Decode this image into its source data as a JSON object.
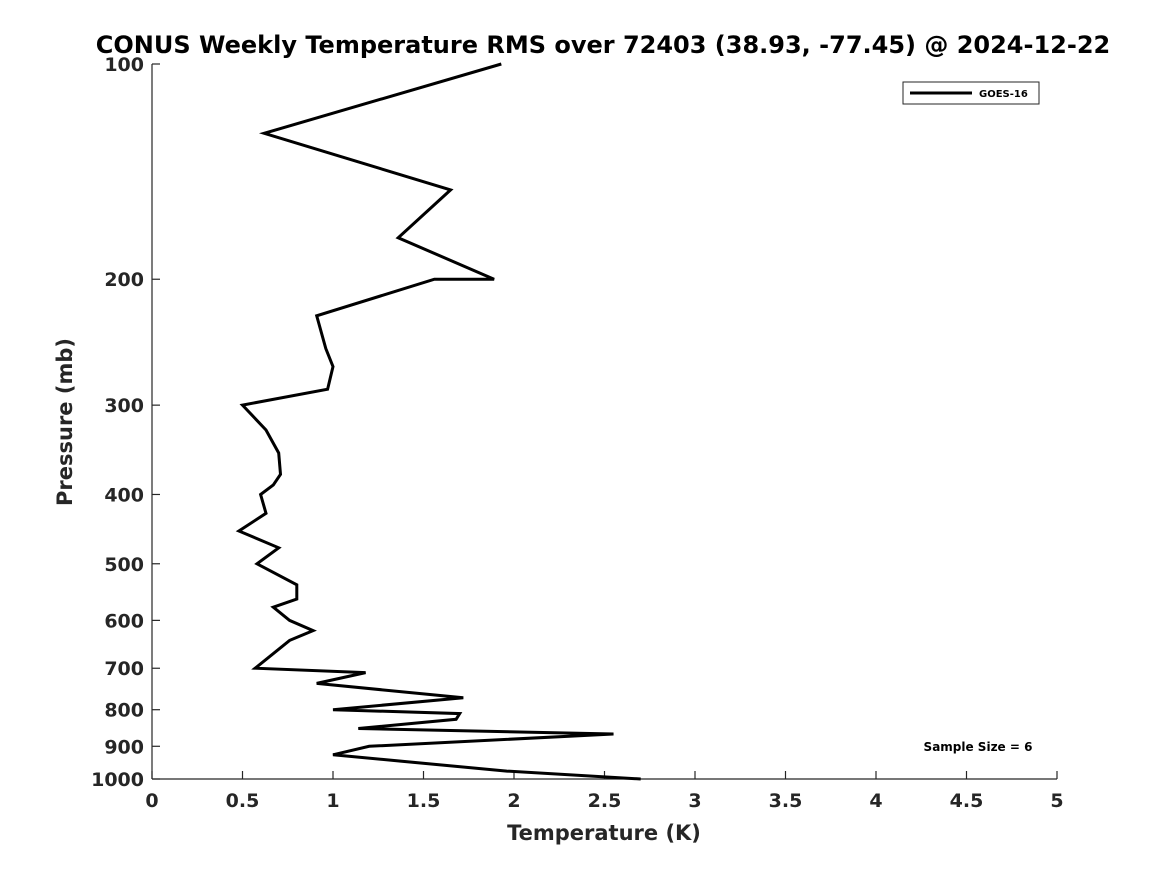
{
  "chart_data": {
    "type": "line",
    "title": "CONUS Weekly Temperature RMS over 72403 (38.93, -77.45) @ 2024-12-22",
    "xlabel": "Temperature (K)",
    "ylabel": "Pressure (mb)",
    "xlim": [
      0,
      5
    ],
    "ylim": [
      100,
      1000
    ],
    "y_scale": "log",
    "y_reversed": true,
    "grid": false,
    "legend_position": "top-right",
    "x_ticks": [
      "0",
      "0.5",
      "1",
      "1.5",
      "2",
      "2.5",
      "3",
      "3.5",
      "4",
      "4.5",
      "5"
    ],
    "y_ticks": [
      "100",
      "200",
      "300",
      "400",
      "500",
      "600",
      "700",
      "800",
      "900",
      "1000"
    ],
    "series": [
      {
        "name": "GOES-16",
        "color": "#000000",
        "points": [
          {
            "x": 1.93,
            "y": 100
          },
          {
            "x": 0.62,
            "y": 125
          },
          {
            "x": 1.65,
            "y": 150
          },
          {
            "x": 1.36,
            "y": 175
          },
          {
            "x": 1.89,
            "y": 200
          },
          {
            "x": 1.56,
            "y": 200
          },
          {
            "x": 0.91,
            "y": 225
          },
          {
            "x": 0.96,
            "y": 250
          },
          {
            "x": 1.0,
            "y": 265
          },
          {
            "x": 0.97,
            "y": 285
          },
          {
            "x": 0.5,
            "y": 300
          },
          {
            "x": 0.63,
            "y": 325
          },
          {
            "x": 0.7,
            "y": 350
          },
          {
            "x": 0.71,
            "y": 375
          },
          {
            "x": 0.67,
            "y": 388
          },
          {
            "x": 0.6,
            "y": 400
          },
          {
            "x": 0.63,
            "y": 425
          },
          {
            "x": 0.48,
            "y": 450
          },
          {
            "x": 0.7,
            "y": 475
          },
          {
            "x": 0.58,
            "y": 500
          },
          {
            "x": 0.8,
            "y": 535
          },
          {
            "x": 0.8,
            "y": 560
          },
          {
            "x": 0.67,
            "y": 575
          },
          {
            "x": 0.76,
            "y": 600
          },
          {
            "x": 0.89,
            "y": 620
          },
          {
            "x": 0.76,
            "y": 640
          },
          {
            "x": 0.57,
            "y": 700
          },
          {
            "x": 1.18,
            "y": 710
          },
          {
            "x": 0.91,
            "y": 735
          },
          {
            "x": 1.72,
            "y": 770
          },
          {
            "x": 1.0,
            "y": 800
          },
          {
            "x": 1.7,
            "y": 810
          },
          {
            "x": 1.68,
            "y": 825
          },
          {
            "x": 1.14,
            "y": 850
          },
          {
            "x": 2.55,
            "y": 865
          },
          {
            "x": 1.2,
            "y": 900
          },
          {
            "x": 1.0,
            "y": 925
          },
          {
            "x": 1.96,
            "y": 975
          },
          {
            "x": 2.7,
            "y": 1000
          }
        ]
      }
    ],
    "annotations": [
      "Sample Size = 6"
    ]
  }
}
